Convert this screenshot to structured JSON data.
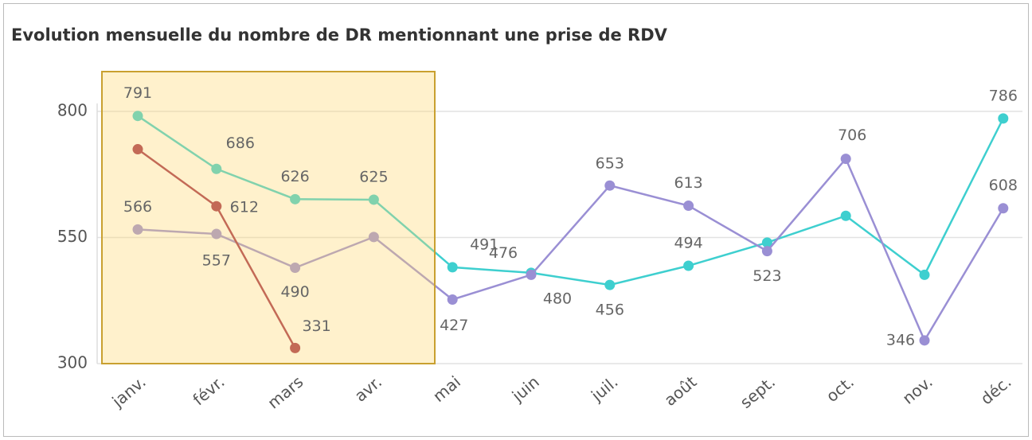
{
  "chart_data": {
    "type": "line",
    "title": "Evolution mensuelle du nombre de DR mentionnant une prise de RDV",
    "categories": [
      "janv.",
      "févr.",
      "mars",
      "avr.",
      "mai",
      "juin",
      "juil.",
      "août",
      "sept.",
      "oct.",
      "nov.",
      "déc."
    ],
    "series": [
      {
        "color": "#3ecfcf",
        "values": [
          791,
          686,
          626,
          625,
          491,
          480,
          456,
          494,
          540,
          593,
          476,
          786
        ],
        "value_labels": [
          "791",
          "686",
          "626",
          "625",
          "491",
          "480",
          "456",
          "494",
          null,
          null,
          null,
          "786"
        ]
      },
      {
        "color": "#9a8fd4",
        "values": [
          566,
          557,
          490,
          551,
          427,
          476,
          653,
          613,
          523,
          706,
          346,
          608
        ],
        "value_labels": [
          "566",
          "557",
          "490",
          null,
          "427",
          "476",
          "653",
          "613",
          "523",
          "706",
          "346",
          "608"
        ]
      },
      {
        "color": "#a3304a",
        "values": [
          725,
          612,
          331,
          null,
          null,
          null,
          null,
          null,
          null,
          null,
          null,
          null
        ],
        "value_labels": [
          null,
          "612",
          "331",
          null,
          null,
          null,
          null,
          null,
          null,
          null,
          null,
          null
        ]
      }
    ],
    "ylim": [
      300,
      800
    ],
    "yticks": [
      300,
      550,
      800
    ],
    "grid": true
  }
}
